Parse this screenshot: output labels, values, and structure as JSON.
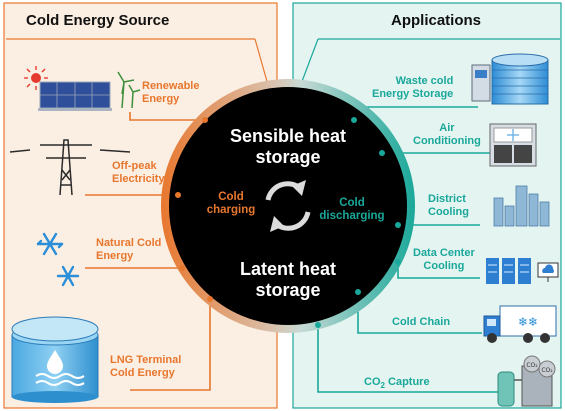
{
  "colors": {
    "left_bg": "#fbeee2",
    "right_bg": "#e4f4f1",
    "orange": "#e8772e",
    "teal": "#1aa89a",
    "circle": "#000000"
  },
  "left_panel": {
    "title": "Cold Energy Source",
    "items": [
      {
        "label1": "Renewable",
        "label2": "Energy",
        "icon": "solar-panel-wind-turbine-icon"
      },
      {
        "label1": "Off-peak",
        "label2": "Electricity",
        "icon": "power-tower-icon"
      },
      {
        "label1": "Natural Cold",
        "label2": "Energy",
        "icon": "snowflake-icon"
      },
      {
        "label1": "LNG Terminal",
        "label2": "Cold Energy",
        "icon": "lng-tank-icon"
      }
    ]
  },
  "right_panel": {
    "title": "Applications",
    "items": [
      {
        "label1": "Waste cold",
        "label2": "Energy Storage",
        "icon": "storage-tank-icon"
      },
      {
        "label1": "Air",
        "label2": "Conditioning",
        "icon": "air-conditioner-icon"
      },
      {
        "label1": "District",
        "label2": "Cooling",
        "icon": "city-buildings-icon"
      },
      {
        "label1": "Data Center",
        "label2": "Cooling",
        "icon": "server-rack-icon"
      },
      {
        "label1": "Cold Chain",
        "label2": "",
        "icon": "refrigerated-truck-icon"
      },
      {
        "label1": "CO",
        "sub": "2",
        "label2": " Capture",
        "icon": "co2-capture-icon"
      }
    ]
  },
  "center": {
    "top_line1": "Sensible heat",
    "top_line2": "storage",
    "bottom_line1": "Latent heat",
    "bottom_line2": "storage",
    "charging1": "Cold",
    "charging2": "charging",
    "discharging1": "Cold",
    "discharging2": "discharging",
    "cycle_icon": "cycle-arrows-icon"
  }
}
